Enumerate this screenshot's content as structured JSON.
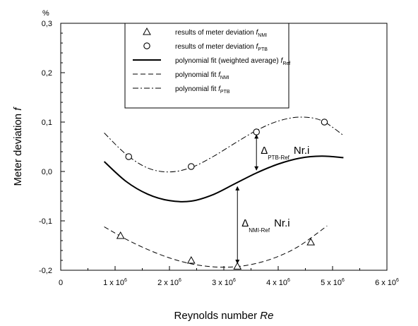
{
  "chart_data": {
    "type": "line",
    "xlabel_prefix": "Reynolds number ",
    "xlabel_symbol": "Re",
    "ylabel_prefix": "Meter deviation ",
    "ylabel_symbol": "f",
    "y_unit": "%",
    "xlim": [
      0,
      6000000
    ],
    "ylim": [
      -0.2,
      0.3
    ],
    "x_ticks": [
      {
        "value": 0,
        "mantissa": "0",
        "exp": ""
      },
      {
        "value": 1000000,
        "mantissa": "1 x 10",
        "exp": "6"
      },
      {
        "value": 2000000,
        "mantissa": "2 x 10",
        "exp": "6"
      },
      {
        "value": 3000000,
        "mantissa": "3 x 10",
        "exp": "6"
      },
      {
        "value": 4000000,
        "mantissa": "4 x 10",
        "exp": "6"
      },
      {
        "value": 5000000,
        "mantissa": "5 x 10",
        "exp": "6"
      },
      {
        "value": 6000000,
        "mantissa": "6 x 10",
        "exp": "6"
      }
    ],
    "y_ticks": [
      {
        "value": -0.2,
        "label": "-0,2"
      },
      {
        "value": -0.1,
        "label": "-0,1"
      },
      {
        "value": 0.0,
        "label": "0,0"
      },
      {
        "value": 0.1,
        "label": "0,1"
      },
      {
        "value": 0.2,
        "label": "0,2"
      },
      {
        "value": 0.3,
        "label": "0,3"
      }
    ],
    "series": [
      {
        "name": "results of meter deviation",
        "sub": "NMI",
        "kind": "points",
        "marker": "triangle",
        "x": [
          1100000,
          2400000,
          3250000,
          4600000
        ],
        "y": [
          -0.13,
          -0.18,
          -0.192,
          -0.143
        ]
      },
      {
        "name": "results of meter deviation",
        "sub": "PTB",
        "kind": "points",
        "marker": "circle",
        "x": [
          1250000,
          2400000,
          3600000,
          4850000
        ],
        "y": [
          0.03,
          0.01,
          0.08,
          0.1
        ]
      },
      {
        "name": "polynomial fit (weighted average)",
        "sub": "Ref",
        "kind": "line",
        "dash": "solid",
        "x": [
          800000,
          1200000,
          1600000,
          2000000,
          2400000,
          2800000,
          3200000,
          3600000,
          4000000,
          4400000,
          4800000,
          5200000
        ],
        "y": [
          0.02,
          -0.02,
          -0.046,
          -0.059,
          -0.06,
          -0.047,
          -0.025,
          -0.003,
          0.015,
          0.027,
          0.031,
          0.028
        ]
      },
      {
        "name": "polynomial fit",
        "sub": "NMI",
        "kind": "line",
        "dash": "dashed",
        "x": [
          800000,
          1200000,
          1600000,
          2000000,
          2400000,
          2800000,
          3200000,
          3600000,
          4000000,
          4400000,
          4900000
        ],
        "y": [
          -0.112,
          -0.137,
          -0.158,
          -0.175,
          -0.187,
          -0.193,
          -0.193,
          -0.186,
          -0.172,
          -0.15,
          -0.11
        ]
      },
      {
        "name": "polynomial fit",
        "sub": "PTB",
        "kind": "line",
        "dash": "dashdot",
        "x": [
          800000,
          1200000,
          1600000,
          2000000,
          2400000,
          2800000,
          3200000,
          3600000,
          4000000,
          4400000,
          4800000,
          5200000
        ],
        "y": [
          0.078,
          0.035,
          0.007,
          -0.001,
          0.008,
          0.03,
          0.057,
          0.083,
          0.102,
          0.11,
          0.103,
          0.073
        ]
      }
    ],
    "annotations": [
      {
        "delta": "Δ",
        "sub": "PTB-Ref",
        "text": "Nr.i",
        "x": 3600000,
        "y_from": 0.08,
        "y_to": -0.003
      },
      {
        "delta": "Δ",
        "sub": "NMI-Ref",
        "text": "Nr.i",
        "x": 3250000,
        "y_from": -0.025,
        "y_to": -0.192
      }
    ],
    "grid": false,
    "legend_position": "top-center"
  }
}
